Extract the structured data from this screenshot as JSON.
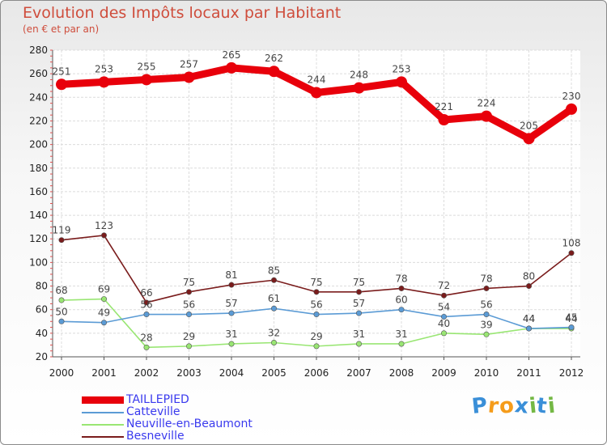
{
  "chart_data": {
    "type": "line",
    "title": "Evolution des Impôts locaux par Habitant",
    "subtitle": "(en € et par an)",
    "xlabel": "",
    "ylabel": "",
    "categories": [
      "2000",
      "2001",
      "2002",
      "2003",
      "2004",
      "2005",
      "2006",
      "2007",
      "2008",
      "2009",
      "2010",
      "2011",
      "2012"
    ],
    "ylim": [
      20,
      280
    ],
    "yticks": [
      20,
      40,
      60,
      80,
      100,
      120,
      140,
      160,
      180,
      200,
      220,
      240,
      260,
      280
    ],
    "grid": true,
    "legend_position": "bottom-left",
    "series": [
      {
        "name": "TAILLEPIED",
        "color": "#e8000b",
        "values": [
          251,
          253,
          255,
          257,
          265,
          262,
          244,
          248,
          253,
          221,
          224,
          205,
          230
        ]
      },
      {
        "name": "Catteville",
        "color": "#5b9bd5",
        "values": [
          50,
          49,
          56,
          56,
          57,
          61,
          56,
          57,
          60,
          54,
          56,
          44,
          45
        ]
      },
      {
        "name": "Neuville-en-Beaumont",
        "color": "#99e673",
        "values": [
          68,
          69,
          28,
          29,
          31,
          32,
          29,
          31,
          31,
          40,
          39,
          44,
          44
        ]
      },
      {
        "name": "Besneville",
        "color": "#7a1c1c",
        "values": [
          119,
          123,
          66,
          75,
          81,
          85,
          75,
          75,
          78,
          72,
          78,
          80,
          108
        ]
      }
    ]
  },
  "logo": {
    "letters": [
      "P",
      "r",
      "o",
      "x",
      "i",
      "t",
      "i"
    ],
    "colors": [
      "#3a8fd8",
      "#f59c1a",
      "#f59c1a",
      "#3a8fd8",
      "#74b845",
      "#3a8fd8",
      "#74b845"
    ]
  }
}
